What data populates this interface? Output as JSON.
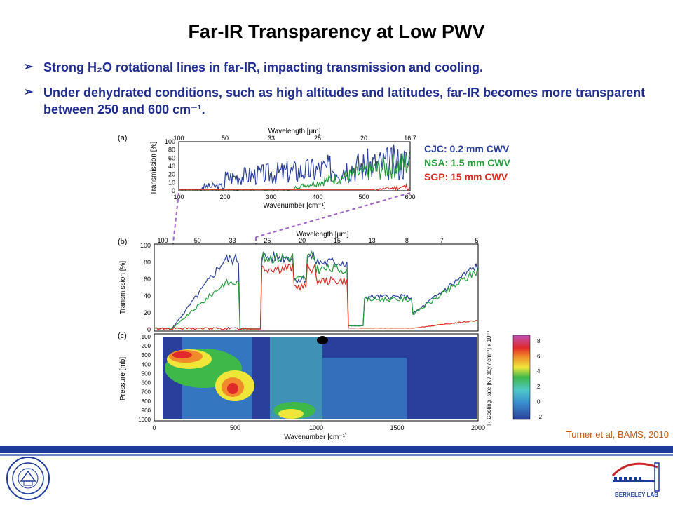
{
  "slide": {
    "title": "Far-IR Transparency at Low PWV",
    "bullet1": "Strong H₂O rotational lines in far-IR, impacting transmission and cooling.",
    "bullet2": "Under dehydrated conditions, such as high altitudes and latitudes, far-IR becomes more transparent between 250 and 600 cm⁻¹.",
    "citation": "Turner et al, BAMS, 2010"
  },
  "figure": {
    "panel_a": {
      "label": "(a)",
      "top_axis_label": "Wavelength [μm]",
      "top_ticks": [
        "100",
        "50",
        "33",
        "25",
        "20",
        "16.7"
      ],
      "ylabel": "Transmission [%]",
      "yticks": [
        "0",
        "10",
        "20",
        "40",
        "60",
        "80",
        "100"
      ],
      "xlabel": "Wavenumber [cm⁻¹]",
      "xticks": [
        "100",
        "200",
        "300",
        "400",
        "500",
        "600"
      ]
    },
    "legend": [
      {
        "text": "CJC: 0.2 mm CWV",
        "color": "#2a3f9b"
      },
      {
        "text": "NSA: 1.5 mm CWV",
        "color": "#239b3a"
      },
      {
        "text": "SGP: 15 mm CWV",
        "color": "#d92a1e"
      }
    ],
    "panel_b": {
      "label": "(b)",
      "top_axis_label": "Wavelength [μm]",
      "top_ticks": [
        "100",
        "50",
        "33",
        "25",
        "20",
        "15",
        "13",
        "8",
        "7",
        "5"
      ],
      "ylabel": "Transmission [%]",
      "yticks": [
        "0",
        "20",
        "40",
        "60",
        "80",
        "100"
      ]
    },
    "panel_c": {
      "label": "(c)",
      "ylabel": "Pressure [mb]",
      "yticks": [
        "100",
        "200",
        "300",
        "400",
        "500",
        "600",
        "700",
        "800",
        "900",
        "1000"
      ],
      "xlabel": "Wavenumber [cm⁻¹]",
      "xticks": [
        "0",
        "500",
        "1000",
        "1500",
        "2000"
      ],
      "cbar_label": "IR Cooling Rate [K / day / cm⁻¹] x 10⁻³",
      "cbar_ticks": [
        "8",
        "6",
        "4",
        "2",
        "0",
        "-2"
      ]
    },
    "colors": {
      "cjc": "#2a3f9b",
      "nsa": "#239b3a",
      "sgp": "#d92a1e",
      "connector": "#a064c8"
    }
  },
  "logos": {
    "left": "seal-icon",
    "right": "berkeley-lab-logo",
    "right_text": "BERKELEY LAB"
  }
}
